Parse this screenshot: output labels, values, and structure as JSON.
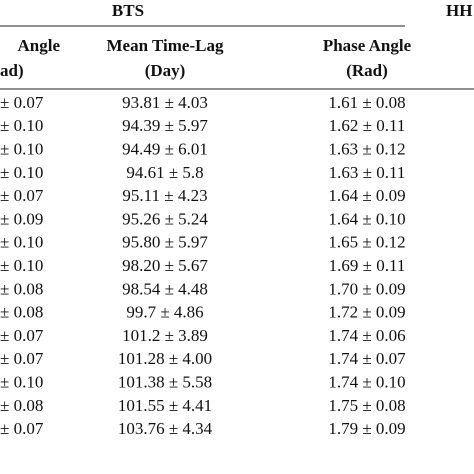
{
  "header": {
    "group_left": "BTS",
    "group_right": "HH"
  },
  "table": {
    "columns": [
      {
        "line1": "Angle",
        "line2": "ad)"
      },
      {
        "line1": "Mean Time-Lag",
        "line2": "(Day)"
      },
      {
        "line1": "Phase Angle",
        "line2": "(Rad)"
      }
    ],
    "rows": [
      [
        "± 0.07",
        "93.81 ± 4.03",
        "1.61 ± 0.08"
      ],
      [
        "± 0.10",
        "94.39 ± 5.97",
        "1.62 ± 0.11"
      ],
      [
        "± 0.10",
        "94.49 ± 6.01",
        "1.63 ± 0.12"
      ],
      [
        "± 0.10",
        "94.61 ± 5.8",
        "1.63 ± 0.11"
      ],
      [
        "± 0.07",
        "95.11 ± 4.23",
        "1.64 ± 0.09"
      ],
      [
        "± 0.09",
        "95.26 ± 5.24",
        "1.64 ± 0.10"
      ],
      [
        "± 0.10",
        "95.80 ± 5.97",
        "1.65 ± 0.12"
      ],
      [
        "± 0.10",
        "98.20 ± 5.67",
        "1.69 ± 0.11"
      ],
      [
        "± 0.08",
        "98.54 ± 4.48",
        "1.70 ± 0.09"
      ],
      [
        "± 0.08",
        "99.7 ± 4.86",
        "1.72 ± 0.09"
      ],
      [
        "± 0.07",
        "101.2 ± 3.89",
        "1.74 ± 0.06"
      ],
      [
        "± 0.07",
        "101.28 ± 4.00",
        "1.74 ± 0.07"
      ],
      [
        "± 0.10",
        "101.38 ± 5.58",
        "1.74 ± 0.10"
      ],
      [
        "± 0.08",
        "101.55 ± 4.41",
        "1.75 ± 0.08"
      ],
      [
        "± 0.07",
        "103.76 ± 4.34",
        "1.79 ± 0.09"
      ]
    ]
  }
}
